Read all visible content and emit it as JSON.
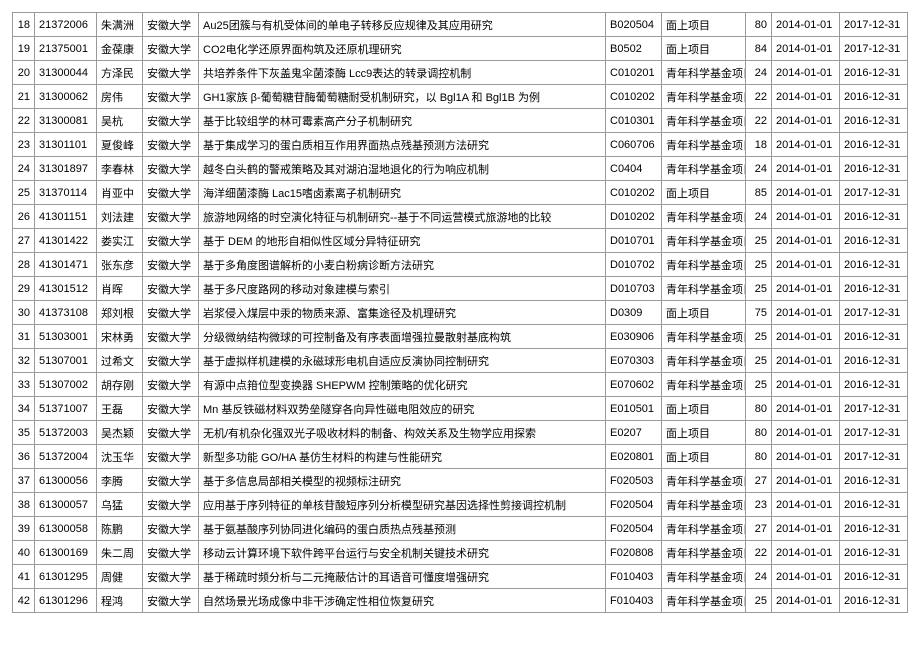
{
  "table": {
    "columns": [
      {
        "key": "idx",
        "class": "col-idx"
      },
      {
        "key": "num",
        "class": "col-num"
      },
      {
        "key": "name",
        "class": "col-name"
      },
      {
        "key": "org",
        "class": "col-org"
      },
      {
        "key": "title",
        "class": "col-title"
      },
      {
        "key": "code",
        "class": "col-code"
      },
      {
        "key": "type",
        "class": "col-type"
      },
      {
        "key": "amt",
        "class": "col-amt"
      },
      {
        "key": "d1",
        "class": "col-d1"
      },
      {
        "key": "d2",
        "class": "col-d2"
      }
    ],
    "rows": [
      {
        "idx": "18",
        "num": "21372006",
        "name": "朱满洲",
        "org": "安徽大学",
        "title": "Au25团簇与有机受体间的单电子转移反应规律及其应用研究",
        "code": "B020504",
        "type": "面上项目",
        "amt": "80",
        "d1": "2014-01-01",
        "d2": "2017-12-31"
      },
      {
        "idx": "19",
        "num": "21375001",
        "name": "金葆康",
        "org": "安徽大学",
        "title": "CO2电化学还原界面构筑及还原机理研究",
        "code": "B0502",
        "type": "面上项目",
        "amt": "84",
        "d1": "2014-01-01",
        "d2": "2017-12-31"
      },
      {
        "idx": "20",
        "num": "31300044",
        "name": "方泽民",
        "org": "安徽大学",
        "title": "共培养条件下灰盖鬼伞菌漆酶 Lcc9表达的转录调控机制",
        "code": "C010201",
        "type": "青年科学基金项目",
        "amt": "24",
        "d1": "2014-01-01",
        "d2": "2016-12-31"
      },
      {
        "idx": "21",
        "num": "31300062",
        "name": "房伟",
        "org": "安徽大学",
        "title": "GH1家族 β-葡萄糖苷酶葡萄糖耐受机制研究，以 Bgl1A 和 Bgl1B 为例",
        "code": "C010202",
        "type": "青年科学基金项目",
        "amt": "22",
        "d1": "2014-01-01",
        "d2": "2016-12-31"
      },
      {
        "idx": "22",
        "num": "31300081",
        "name": "吴杭",
        "org": "安徽大学",
        "title": "基于比较组学的林可霉素高产分子机制研究",
        "code": "C010301",
        "type": "青年科学基金项目",
        "amt": "22",
        "d1": "2014-01-01",
        "d2": "2016-12-31"
      },
      {
        "idx": "23",
        "num": "31301101",
        "name": "夏俊峰",
        "org": "安徽大学",
        "title": "基于集成学习的蛋白质相互作用界面热点残基预测方法研究",
        "code": "C060706",
        "type": "青年科学基金项目",
        "amt": "18",
        "d1": "2014-01-01",
        "d2": "2016-12-31"
      },
      {
        "idx": "24",
        "num": "31301897",
        "name": "李春林",
        "org": "安徽大学",
        "title": "越冬白头鹤的警戒策略及其对湖泊湿地退化的行为响应机制",
        "code": "C0404",
        "type": "青年科学基金项目",
        "amt": "24",
        "d1": "2014-01-01",
        "d2": "2016-12-31"
      },
      {
        "idx": "25",
        "num": "31370114",
        "name": "肖亚中",
        "org": "安徽大学",
        "title": "海洋细菌漆酶 Lac15嗜卤素离子机制研究",
        "code": "C010202",
        "type": "面上项目",
        "amt": "85",
        "d1": "2014-01-01",
        "d2": "2017-12-31"
      },
      {
        "idx": "26",
        "num": "41301151",
        "name": "刘法建",
        "org": "安徽大学",
        "title": "旅游地网络的时空演化特征与机制研究--基于不同运营模式旅游地的比较",
        "code": "D010202",
        "type": "青年科学基金项目",
        "amt": "24",
        "d1": "2014-01-01",
        "d2": "2016-12-31"
      },
      {
        "idx": "27",
        "num": "41301422",
        "name": "娄实江",
        "org": "安徽大学",
        "title": "基于 DEM 的地形自相似性区域分异特征研究",
        "code": "D010701",
        "type": "青年科学基金项目",
        "amt": "25",
        "d1": "2014-01-01",
        "d2": "2016-12-31"
      },
      {
        "idx": "28",
        "num": "41301471",
        "name": "张东彦",
        "org": "安徽大学",
        "title": "基于多角度图谱解析的小麦白粉病诊断方法研究",
        "code": "D010702",
        "type": "青年科学基金项目",
        "amt": "25",
        "d1": "2014-01-01",
        "d2": "2016-12-31"
      },
      {
        "idx": "29",
        "num": "41301512",
        "name": "肖晖",
        "org": "安徽大学",
        "title": "基于多尺度路网的移动对象建模与索引",
        "code": "D010703",
        "type": "青年科学基金项目",
        "amt": "25",
        "d1": "2014-01-01",
        "d2": "2016-12-31"
      },
      {
        "idx": "30",
        "num": "41373108",
        "name": "郑刘根",
        "org": "安徽大学",
        "title": "岩浆侵入煤层中汞的物质来源、富集途径及机理研究",
        "code": "D0309",
        "type": "面上项目",
        "amt": "75",
        "d1": "2014-01-01",
        "d2": "2017-12-31"
      },
      {
        "idx": "31",
        "num": "51303001",
        "name": "宋林勇",
        "org": "安徽大学",
        "title": "分级微纳结构微球的可控制备及有序表面增强拉曼散射基底构筑",
        "code": "E030906",
        "type": "青年科学基金项目",
        "amt": "25",
        "d1": "2014-01-01",
        "d2": "2016-12-31"
      },
      {
        "idx": "32",
        "num": "51307001",
        "name": "过希文",
        "org": "安徽大学",
        "title": "基于虚拟样机建模的永磁球形电机自适应反演协同控制研究",
        "code": "E070303",
        "type": "青年科学基金项目",
        "amt": "25",
        "d1": "2014-01-01",
        "d2": "2016-12-31"
      },
      {
        "idx": "33",
        "num": "51307002",
        "name": "胡存刚",
        "org": "安徽大学",
        "title": "有源中点箝位型变换器 SHEPWM 控制策略的优化研究",
        "code": "E070602",
        "type": "青年科学基金项目",
        "amt": "25",
        "d1": "2014-01-01",
        "d2": "2016-12-31"
      },
      {
        "idx": "34",
        "num": "51371007",
        "name": "王磊",
        "org": "安徽大学",
        "title": "Mn 基反铁磁材料双势垒隧穿各向异性磁电阻效应的研究",
        "code": "E010501",
        "type": "面上项目",
        "amt": "80",
        "d1": "2014-01-01",
        "d2": "2017-12-31"
      },
      {
        "idx": "35",
        "num": "51372003",
        "name": "吴杰颖",
        "org": "安徽大学",
        "title": "无机/有机杂化强双光子吸收材料的制备、构效关系及生物学应用探索",
        "code": "E0207",
        "type": "面上项目",
        "amt": "80",
        "d1": "2014-01-01",
        "d2": "2017-12-31"
      },
      {
        "idx": "36",
        "num": "51372004",
        "name": "沈玉华",
        "org": "安徽大学",
        "title": "新型多功能 GO/HA 基仿生材料的构建与性能研究",
        "code": "E020801",
        "type": "面上项目",
        "amt": "80",
        "d1": "2014-01-01",
        "d2": "2017-12-31"
      },
      {
        "idx": "37",
        "num": "61300056",
        "name": "李腾",
        "org": "安徽大学",
        "title": "基于多信息局部相关模型的视频标注研究",
        "code": "F020503",
        "type": "青年科学基金项目",
        "amt": "27",
        "d1": "2014-01-01",
        "d2": "2016-12-31"
      },
      {
        "idx": "38",
        "num": "61300057",
        "name": "乌猛",
        "org": "安徽大学",
        "title": "应用基于序列特征的单核苷酸短序列分析模型研究基因选择性剪接调控机制",
        "code": "F020504",
        "type": "青年科学基金项目",
        "amt": "23",
        "d1": "2014-01-01",
        "d2": "2016-12-31"
      },
      {
        "idx": "39",
        "num": "61300058",
        "name": "陈鹏",
        "org": "安徽大学",
        "title": "基于氨基酸序列协同进化编码的蛋白质热点残基预测",
        "code": "F020504",
        "type": "青年科学基金项目",
        "amt": "27",
        "d1": "2014-01-01",
        "d2": "2016-12-31"
      },
      {
        "idx": "40",
        "num": "61300169",
        "name": "朱二周",
        "org": "安徽大学",
        "title": "移动云计算环境下软件跨平台运行与安全机制关键技术研究",
        "code": "F020808",
        "type": "青年科学基金项目",
        "amt": "22",
        "d1": "2014-01-01",
        "d2": "2016-12-31"
      },
      {
        "idx": "41",
        "num": "61301295",
        "name": "周健",
        "org": "安徽大学",
        "title": "基于稀疏时频分析与二元掩蔽估计的耳语音可懂度增强研究",
        "code": "F010403",
        "type": "青年科学基金项目",
        "amt": "24",
        "d1": "2014-01-01",
        "d2": "2016-12-31"
      },
      {
        "idx": "42",
        "num": "61301296",
        "name": "程鸿",
        "org": "安徽大学",
        "title": "自然场景光场成像中非干涉确定性相位恢复研究",
        "code": "F010403",
        "type": "青年科学基金项目",
        "amt": "25",
        "d1": "2014-01-01",
        "d2": "2016-12-31"
      }
    ]
  }
}
